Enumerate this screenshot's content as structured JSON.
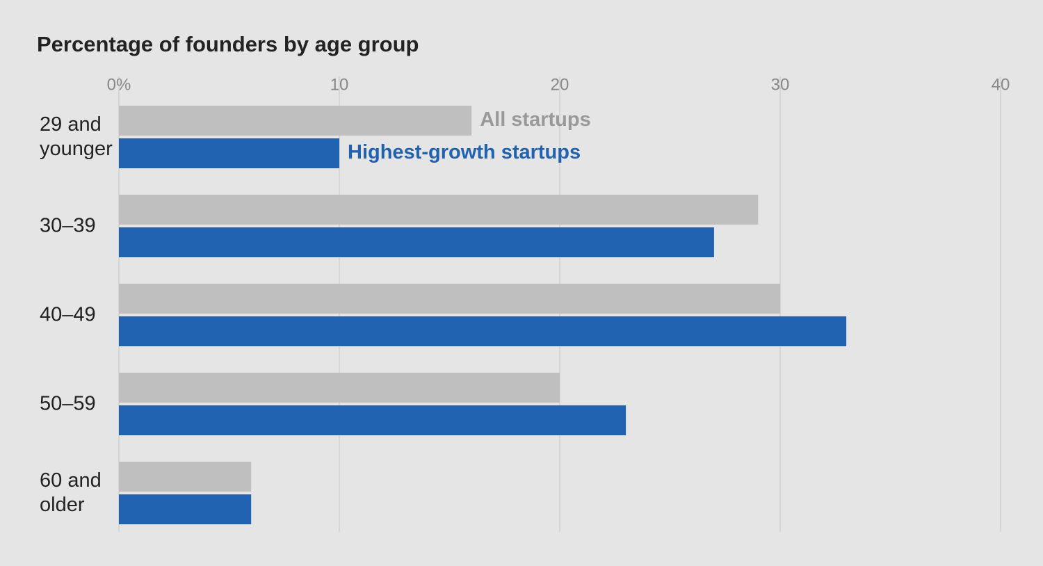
{
  "chart_data": {
    "type": "hbar",
    "title": "Percentage of founders by age group",
    "categories": [
      "29 and younger",
      "30–39",
      "40–49",
      "50–59",
      "60 and older"
    ],
    "series": [
      {
        "name": "All startups",
        "color": "#bfbfbf",
        "values": [
          16,
          29,
          30,
          20,
          6
        ]
      },
      {
        "name": "Highest-growth startups",
        "color": "#2162b0",
        "values": [
          10,
          27,
          33,
          23,
          6
        ]
      }
    ],
    "xlim": [
      0,
      40
    ],
    "xticks": [
      {
        "value": 0,
        "label": "0%"
      },
      10,
      20,
      30,
      40
    ],
    "grid": true
  }
}
